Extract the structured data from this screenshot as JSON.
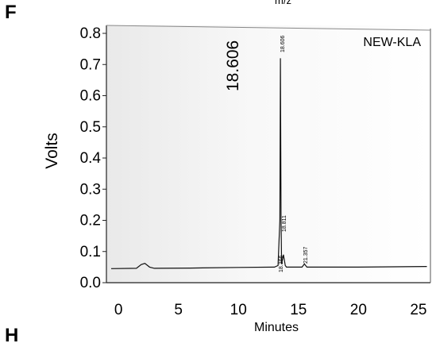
{
  "panel_letters": {
    "top": "F",
    "bottom": "H"
  },
  "top_caption": "m/z",
  "chart_data": {
    "type": "line",
    "title": "",
    "xlabel": "Minutes",
    "ylabel": "Volts",
    "xlim": [
      -1,
      26
    ],
    "ylim": [
      0.0,
      0.84
    ],
    "x_ticks": [
      0,
      5,
      10,
      15,
      20,
      25
    ],
    "y_ticks": [
      0.0,
      0.1,
      0.2,
      0.3,
      0.4,
      0.5,
      0.6,
      0.7,
      0.8
    ],
    "y_tick_labels": [
      "0.0",
      "0.1",
      "0.2",
      "0.3",
      "0.4",
      "0.5",
      "0.6",
      "0.7",
      "0.8"
    ],
    "grid": false,
    "sample_label": "NEW-KLA",
    "main_peak_label": "18.606",
    "peak_labels": [
      "18.606",
      "18.366",
      "18.811",
      "21.357"
    ],
    "series": [
      {
        "values_x": [
          -0.6,
          1.5,
          1.9,
          2.2,
          2.6,
          3.0,
          6,
          10,
          13.0,
          13.3,
          13.45,
          13.5,
          13.55,
          13.6,
          13.75,
          13.9,
          14.0,
          14.3,
          15.3,
          15.5,
          15.7,
          20,
          25.7
        ],
        "values_y": [
          0.045,
          0.046,
          0.058,
          0.062,
          0.05,
          0.046,
          0.047,
          0.049,
          0.05,
          0.055,
          0.2,
          0.72,
          0.2,
          0.06,
          0.09,
          0.055,
          0.05,
          0.05,
          0.05,
          0.06,
          0.05,
          0.05,
          0.052
        ]
      }
    ]
  }
}
